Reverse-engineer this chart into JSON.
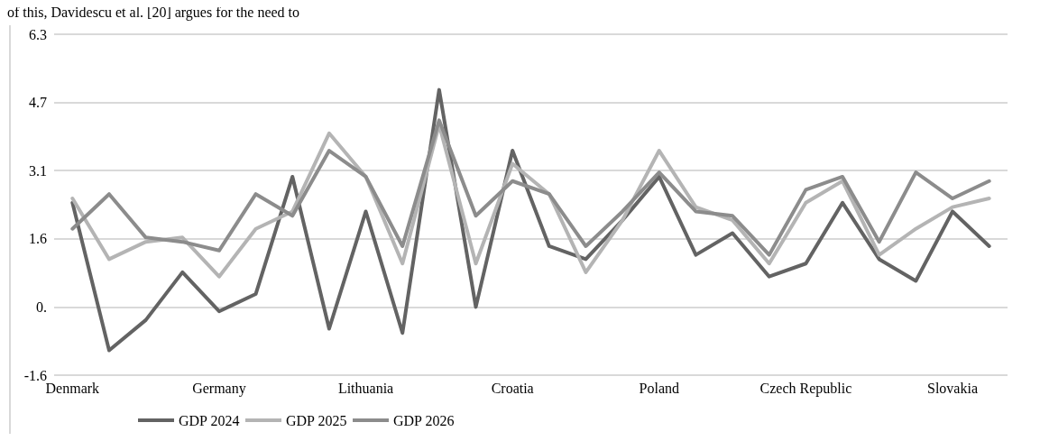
{
  "chart_data": {
    "type": "line",
    "annotations": [
      "of this, Davidescu et al. [20] argues for the need to"
    ],
    "categories": [
      "Denmark",
      null,
      null,
      null,
      "Germany",
      null,
      null,
      null,
      "Lithuania",
      null,
      null,
      null,
      "Croatia",
      null,
      null,
      null,
      "Poland",
      null,
      null,
      null,
      "Czech Republic",
      null,
      null,
      null,
      "Slovakia",
      null
    ],
    "series": [
      {
        "name": "GDP 2024",
        "color": "#636363",
        "values": [
          2.4,
          -1.0,
          -0.3,
          0.8,
          -0.1,
          0.3,
          3.0,
          -0.5,
          2.2,
          -0.6,
          5.0,
          0.0,
          3.6,
          1.4,
          1.1,
          2.0,
          3.0,
          1.2,
          1.7,
          0.7,
          1.0,
          2.4,
          1.1,
          0.6,
          2.2,
          1.4
        ]
      },
      {
        "name": "GDP 2025",
        "color": "#b4b4b4",
        "values": [
          2.5,
          1.1,
          1.5,
          1.6,
          0.7,
          1.8,
          2.2,
          4.0,
          3.0,
          1.0,
          4.2,
          1.0,
          3.3,
          2.6,
          0.8,
          2.0,
          3.6,
          2.3,
          2.0,
          1.0,
          2.4,
          2.9,
          1.2,
          1.8,
          2.3,
          2.5
        ]
      },
      {
        "name": "GDP 2026",
        "color": "#8c8c8c",
        "values": [
          1.8,
          2.6,
          1.6,
          1.5,
          1.3,
          2.6,
          2.1,
          3.6,
          3.0,
          1.4,
          4.3,
          2.1,
          2.9,
          2.6,
          1.4,
          2.2,
          3.1,
          2.2,
          2.1,
          1.2,
          2.7,
          3.0,
          1.5,
          3.1,
          2.5,
          2.9
        ]
      }
    ],
    "ylim": [
      -1.57,
      6.28
    ],
    "yticks": [
      {
        "value": -1.57,
        "label": "-1.6"
      },
      {
        "value": 0,
        "label": "0."
      },
      {
        "value": 1.57,
        "label": "1.6"
      },
      {
        "value": 3.14,
        "label": "3.1"
      },
      {
        "value": 4.71,
        "label": "4.7"
      },
      {
        "value": 6.28,
        "label": "6.3"
      }
    ],
    "grid": "y",
    "legend": "bottom",
    "marker": "none",
    "line_style": "solid"
  }
}
